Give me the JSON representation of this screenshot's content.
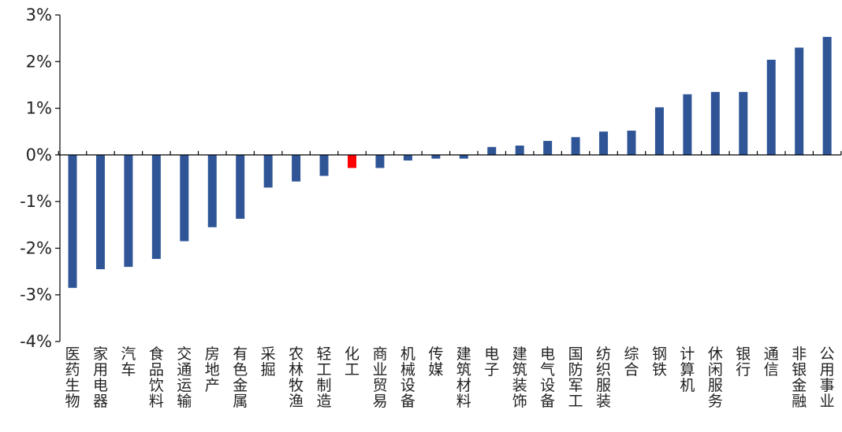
{
  "chart_data": {
    "type": "bar",
    "categories": [
      "医药生物",
      "家用电器",
      "汽车",
      "食品饮料",
      "交通运输",
      "房地产",
      "有色金属",
      "采掘",
      "农林牧渔",
      "轻工制造",
      "化工",
      "商业贸易",
      "机械设备",
      "传媒",
      "建筑材料",
      "电子",
      "建筑装饰",
      "电气设备",
      "国防军工",
      "纺织服装",
      "综合",
      "钢铁",
      "计算机",
      "休闲服务",
      "银行",
      "通信",
      "非银金融",
      "公用事业"
    ],
    "values": [
      -2.85,
      -2.45,
      -2.4,
      -2.23,
      -1.85,
      -1.55,
      -1.37,
      -0.7,
      -0.57,
      -0.45,
      -0.28,
      -0.28,
      -0.12,
      -0.08,
      -0.08,
      0.17,
      0.2,
      0.3,
      0.38,
      0.5,
      0.52,
      1.02,
      1.3,
      1.35,
      1.35,
      2.04,
      2.3,
      2.53
    ],
    "unit": "%",
    "ylim": [
      -4,
      3
    ],
    "yticks": [
      3,
      2,
      1,
      0,
      -1,
      -2,
      -3,
      -4
    ],
    "ytick_labels": [
      "3%",
      "2%",
      "1%",
      "0%",
      "-1%",
      "-2%",
      "-3%",
      "-4%"
    ],
    "highlight_category": "化工",
    "colors": {
      "bar": "#2F5597",
      "highlight": "#FF0000",
      "axis": "#000000"
    },
    "title": "",
    "xlabel": "",
    "ylabel": "",
    "grid": false,
    "legend": "none"
  }
}
